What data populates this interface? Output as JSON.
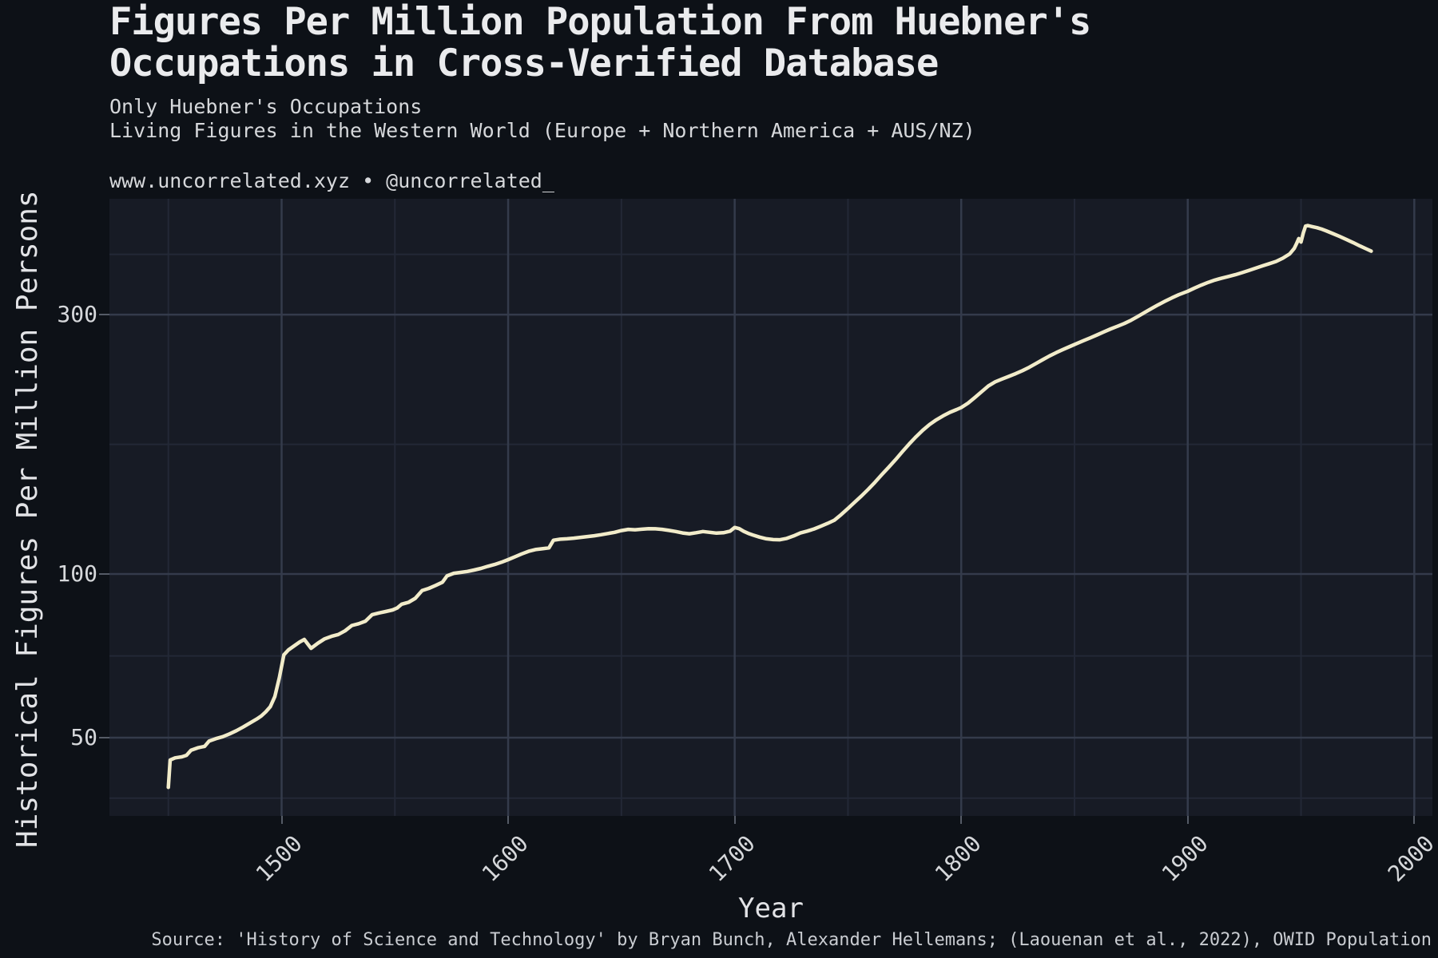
{
  "colors": {
    "background": "#0d1117",
    "panel": "#171b25",
    "grid_major": "#343b4b",
    "grid_minor": "#232836",
    "tick": "#555b66",
    "line": "#f2ecca",
    "text": "#eaebed",
    "text_dim": "#d6d8db"
  },
  "chart_data": {
    "type": "line",
    "title": "Figures Per Million Population From Huebner's Occupations in Cross-Verified Database",
    "title_lines": [
      "Figures Per Million Population From Huebner's",
      "Occupations in Cross-Verified Database"
    ],
    "subtitle_lines": [
      "Only Huebner's Occupations",
      "Living Figures in the Western World (Europe + Northern America + AUS/NZ)"
    ],
    "attribution": "www.uncorrelated.xyz • @uncorrelated_",
    "source": "Source: 'History of Science and Technology' by Bryan Bunch, Alexander Hellemans; (Laouenan et al., 2022), OWID Population",
    "xlabel": "Year",
    "ylabel": "Historical Figures Per Million Persons",
    "y_scale": "log",
    "grid": "major+minor",
    "legend": "none",
    "x_domain": [
      1424,
      2008
    ],
    "y_domain": [
      35.9,
      490
    ],
    "x_ticks": [
      1500,
      1600,
      1700,
      1800,
      1900,
      2000
    ],
    "x_minor_ticks": [
      1450,
      1550,
      1650,
      1750,
      1850,
      1950
    ],
    "y_ticks": [
      50,
      100,
      300
    ],
    "y_minor_ticks": [
      38.7,
      70.7,
      173.2,
      387.3
    ],
    "series": [
      {
        "points": [
          [
            1450,
            40.5
          ],
          [
            1450.8,
            45.5
          ],
          [
            1453,
            45.9
          ],
          [
            1456,
            46.1
          ],
          [
            1458,
            46.4
          ],
          [
            1460,
            47.4
          ],
          [
            1463,
            47.9
          ],
          [
            1466,
            48.2
          ],
          [
            1468,
            49.3
          ],
          [
            1471,
            49.8
          ],
          [
            1474,
            50.2
          ],
          [
            1477,
            50.8
          ],
          [
            1480,
            51.5
          ],
          [
            1483,
            52.3
          ],
          [
            1486,
            53.2
          ],
          [
            1489,
            54.1
          ],
          [
            1491,
            54.8
          ],
          [
            1493,
            55.8
          ],
          [
            1495,
            57
          ],
          [
            1497,
            59.5
          ],
          [
            1499,
            64.5
          ],
          [
            1501,
            71
          ],
          [
            1503,
            72.5
          ],
          [
            1506,
            74
          ],
          [
            1508,
            75
          ],
          [
            1510,
            75.8
          ],
          [
            1513,
            73
          ],
          [
            1516,
            74.6
          ],
          [
            1519,
            76
          ],
          [
            1522,
            76.8
          ],
          [
            1525,
            77.4
          ],
          [
            1528,
            78.6
          ],
          [
            1531,
            80.4
          ],
          [
            1534,
            81
          ],
          [
            1537,
            81.9
          ],
          [
            1540,
            84.2
          ],
          [
            1543,
            84.8
          ],
          [
            1546,
            85.3
          ],
          [
            1549,
            85.9
          ],
          [
            1551,
            86.6
          ],
          [
            1553,
            88
          ],
          [
            1556,
            88.7
          ],
          [
            1559,
            90.2
          ],
          [
            1562,
            93.2
          ],
          [
            1565,
            94.1
          ],
          [
            1568,
            95.3
          ],
          [
            1571,
            96.6
          ],
          [
            1573,
            99.2
          ],
          [
            1576,
            100.3
          ],
          [
            1579,
            100.7
          ],
          [
            1582,
            101.1
          ],
          [
            1585,
            101.7
          ],
          [
            1588,
            102.4
          ],
          [
            1591,
            103.3
          ],
          [
            1594,
            104.1
          ],
          [
            1597,
            105.1
          ],
          [
            1600,
            106.3
          ],
          [
            1603,
            107.6
          ],
          [
            1606,
            108.9
          ],
          [
            1609,
            110.1
          ],
          [
            1612,
            110.9
          ],
          [
            1615,
            111.3
          ],
          [
            1618,
            111.7
          ],
          [
            1620,
            115.4
          ],
          [
            1623,
            115.9
          ],
          [
            1626,
            116.1
          ],
          [
            1629,
            116.4
          ],
          [
            1632,
            116.8
          ],
          [
            1635,
            117.2
          ],
          [
            1638,
            117.6
          ],
          [
            1641,
            118.1
          ],
          [
            1644,
            118.7
          ],
          [
            1647,
            119.3
          ],
          [
            1650,
            120.2
          ],
          [
            1653,
            120.8
          ],
          [
            1656,
            120.6
          ],
          [
            1659,
            120.9
          ],
          [
            1662,
            121.2
          ],
          [
            1665,
            121.1
          ],
          [
            1668,
            120.8
          ],
          [
            1671,
            120.3
          ],
          [
            1674,
            119.7
          ],
          [
            1677,
            119
          ],
          [
            1680,
            118.6
          ],
          [
            1683,
            119.1
          ],
          [
            1686,
            119.7
          ],
          [
            1689,
            119.3
          ],
          [
            1692,
            118.9
          ],
          [
            1695,
            119.1
          ],
          [
            1698,
            119.9
          ],
          [
            1700,
            121.8
          ],
          [
            1702,
            121.2
          ],
          [
            1704,
            119.8
          ],
          [
            1706,
            118.8
          ],
          [
            1708,
            118
          ],
          [
            1711,
            116.9
          ],
          [
            1714,
            116.1
          ],
          [
            1717,
            115.7
          ],
          [
            1720,
            115.6
          ],
          [
            1723,
            116.3
          ],
          [
            1726,
            117.5
          ],
          [
            1729,
            119
          ],
          [
            1732,
            119.9
          ],
          [
            1735,
            121
          ],
          [
            1738,
            122.4
          ],
          [
            1741,
            123.9
          ],
          [
            1744,
            125.6
          ],
          [
            1747,
            128.6
          ],
          [
            1750,
            132
          ],
          [
            1753,
            135.6
          ],
          [
            1756,
            139.2
          ],
          [
            1759,
            143.2
          ],
          [
            1762,
            147.6
          ],
          [
            1765,
            152.4
          ],
          [
            1768,
            157.2
          ],
          [
            1771,
            162.3
          ],
          [
            1774,
            167.9
          ],
          [
            1777,
            173.4
          ],
          [
            1780,
            178.8
          ],
          [
            1783,
            183.8
          ],
          [
            1786,
            188.3
          ],
          [
            1789,
            192.1
          ],
          [
            1792,
            195.4
          ],
          [
            1795,
            198.3
          ],
          [
            1798,
            200.7
          ],
          [
            1800,
            202.4
          ],
          [
            1803,
            206.2
          ],
          [
            1806,
            211.1
          ],
          [
            1809,
            216.4
          ],
          [
            1812,
            221.8
          ],
          [
            1815,
            225.7
          ],
          [
            1818,
            228.4
          ],
          [
            1821,
            230.9
          ],
          [
            1824,
            233.6
          ],
          [
            1827,
            236.6
          ],
          [
            1830,
            240
          ],
          [
            1833,
            243.9
          ],
          [
            1836,
            247.9
          ],
          [
            1839,
            251.9
          ],
          [
            1842,
            255.5
          ],
          [
            1845,
            258.9
          ],
          [
            1848,
            262.1
          ],
          [
            1851,
            265.4
          ],
          [
            1854,
            268.7
          ],
          [
            1857,
            271.9
          ],
          [
            1860,
            275.3
          ],
          [
            1863,
            278.9
          ],
          [
            1866,
            282.4
          ],
          [
            1869,
            285.6
          ],
          [
            1872,
            289
          ],
          [
            1875,
            293
          ],
          [
            1878,
            297.8
          ],
          [
            1881,
            302.9
          ],
          [
            1884,
            307.9
          ],
          [
            1887,
            312.8
          ],
          [
            1890,
            317.5
          ],
          [
            1893,
            322.1
          ],
          [
            1896,
            326.4
          ],
          [
            1900,
            331.2
          ],
          [
            1903,
            335.8
          ],
          [
            1906,
            340
          ],
          [
            1909,
            343.9
          ],
          [
            1912,
            347.3
          ],
          [
            1915,
            350.1
          ],
          [
            1918,
            352.6
          ],
          [
            1921,
            355.3
          ],
          [
            1924,
            358.4
          ],
          [
            1927,
            361.8
          ],
          [
            1930,
            365.3
          ],
          [
            1933,
            368.8
          ],
          [
            1936,
            372.2
          ],
          [
            1939,
            375.8
          ],
          [
            1942,
            381
          ],
          [
            1945,
            388
          ],
          [
            1947,
            397
          ],
          [
            1948,
            405
          ],
          [
            1949,
            414
          ],
          [
            1950,
            408
          ],
          [
            1951,
            424
          ],
          [
            1952,
            436.5
          ],
          [
            1953,
            437.5
          ],
          [
            1955,
            435.5
          ],
          [
            1957,
            433.5
          ],
          [
            1959,
            431
          ],
          [
            1961,
            428
          ],
          [
            1964,
            423
          ],
          [
            1967,
            417.8
          ],
          [
            1970,
            412.5
          ],
          [
            1973,
            407
          ],
          [
            1976,
            401.2
          ],
          [
            1979,
            396
          ],
          [
            1981,
            392.5
          ]
        ]
      }
    ]
  }
}
